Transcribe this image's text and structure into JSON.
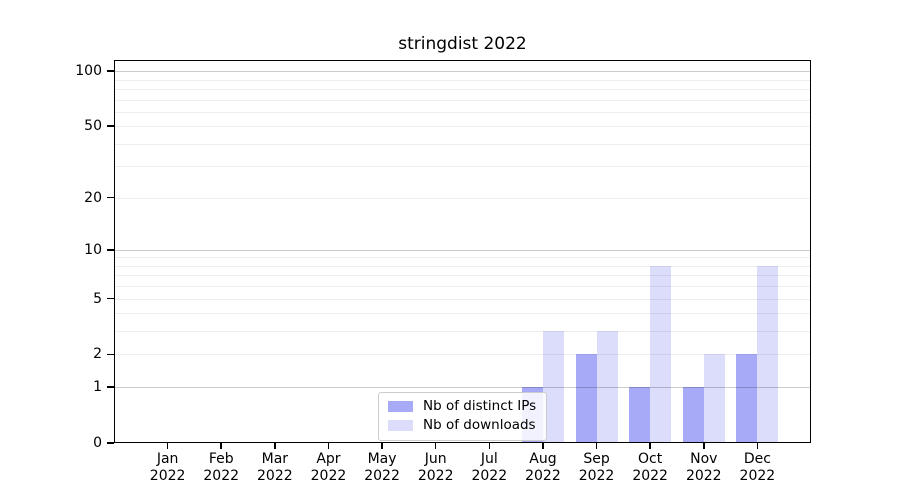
{
  "chart_data": {
    "type": "bar",
    "title": "stringdist 2022",
    "categories": [
      "Jan",
      "Feb",
      "Mar",
      "Apr",
      "May",
      "Jun",
      "Jul",
      "Aug",
      "Sep",
      "Oct",
      "Nov",
      "Dec"
    ],
    "category_year": "2022",
    "series": [
      {
        "name": "Nb of distinct IPs",
        "values": [
          0,
          0,
          0,
          0,
          0,
          0,
          0,
          1,
          2,
          1,
          1,
          2
        ],
        "color": "#A7AAF7"
      },
      {
        "name": "Nb of downloads",
        "values": [
          0,
          0,
          0,
          0,
          0,
          0,
          0,
          3,
          3,
          8,
          2,
          8
        ],
        "color": "#DBDDFB"
      }
    ],
    "y_scale": "log1p",
    "y_ticks": [
      0,
      1,
      2,
      5,
      10,
      20,
      50,
      100
    ],
    "y_gridlines_major": [
      1,
      10,
      100
    ],
    "y_gridlines_minor": [
      2,
      3,
      4,
      5,
      6,
      7,
      8,
      9,
      20,
      30,
      40,
      50,
      60,
      70,
      80,
      90
    ],
    "ylim": [
      0,
      115
    ],
    "xlabel": "",
    "ylabel": "",
    "grid": "both",
    "legend_position": "lower-center"
  },
  "colors": {
    "background": "#FFFFFF",
    "axis": "#000000",
    "bar_ips": "#A7AAF7",
    "bar_downloads": "#DBDDFB"
  }
}
